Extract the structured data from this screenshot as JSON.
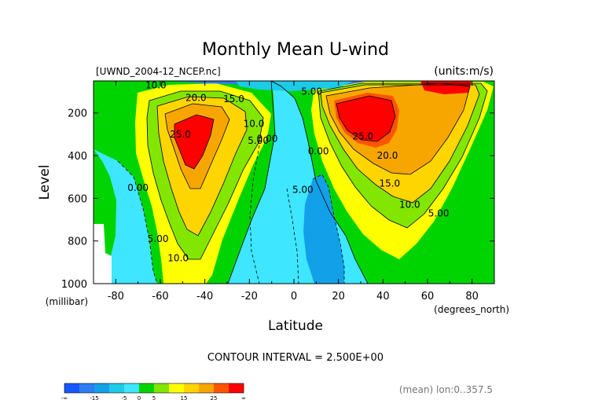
{
  "chart_data": {
    "type": "heatmap",
    "title": "Monthly Mean U-wind",
    "subtitle_left": "[UWND_2004-12_NCEP.nc]",
    "subtitle_right": "(units:m/s)",
    "xlabel": "Latitude",
    "x_unit_label": "(degrees_north)",
    "ylabel": "Level",
    "y_unit_label": "(millibar)",
    "xlim": [
      -90,
      90
    ],
    "ylim": [
      1000,
      50
    ],
    "x_ticks": [
      -80,
      -60,
      -40,
      -20,
      0,
      20,
      40,
      60,
      80
    ],
    "y_ticks": [
      1000,
      800,
      600,
      400,
      200
    ],
    "contour_interval_text": "CONTOUR INTERVAL = 2.500E+00",
    "footer_text": "(mean) lon:0..357.5",
    "contour_labels": [
      {
        "text": "10.0",
        "x": -62,
        "y": 70
      },
      {
        "text": "20.0",
        "x": -44,
        "y": 130
      },
      {
        "text": "15.0",
        "x": -27,
        "y": 135
      },
      {
        "text": "25.0",
        "x": -51,
        "y": 300
      },
      {
        "text": "10.0",
        "x": -18,
        "y": 250
      },
      {
        "text": "5.00",
        "x": -16,
        "y": 330
      },
      {
        "text": "0.00",
        "x": -12,
        "y": 320
      },
      {
        "text": "0.00",
        "x": -70,
        "y": 550
      },
      {
        "text": "5.00",
        "x": -61,
        "y": 790
      },
      {
        "text": "10.0",
        "x": -52,
        "y": 880
      },
      {
        "text": "5.00",
        "x": 8,
        "y": 100
      },
      {
        "text": "0.00",
        "x": 11,
        "y": 380
      },
      {
        "text": "5.00",
        "x": 4,
        "y": 560
      },
      {
        "text": "25.0",
        "x": 31,
        "y": 310
      },
      {
        "text": "20.0",
        "x": 42,
        "y": 400
      },
      {
        "text": "15.0",
        "x": 43,
        "y": 530
      },
      {
        "text": "10.0",
        "x": 52,
        "y": 630
      },
      {
        "text": "5.00",
        "x": 65,
        "y": 670
      }
    ],
    "colorbar": {
      "bins": [
        {
          "range": "< -20",
          "color": "#1457ff"
        },
        {
          "range": "-20..-15",
          "color": "#2f7df2"
        },
        {
          "range": "-15..-10",
          "color": "#12a0e8"
        },
        {
          "range": "-10..-5",
          "color": "#1ccbe8"
        },
        {
          "range": "-5..0",
          "color": "#3ee6ff"
        },
        {
          "range": "0..5",
          "color": "#00d400"
        },
        {
          "range": "5..10",
          "color": "#82e600"
        },
        {
          "range": "10..15",
          "color": "#ffff00"
        },
        {
          "range": "15..20",
          "color": "#ffd500"
        },
        {
          "range": "20..25",
          "color": "#f7a600"
        },
        {
          "range": "25..30",
          "color": "#ff5500"
        },
        {
          "range": "> 30",
          "color": "#ff0000"
        }
      ],
      "tick_labels": [
        "-∞",
        "-15",
        "-5",
        "0",
        "5",
        "15",
        "25",
        "∞"
      ]
    },
    "field_summary": {
      "south_jet": {
        "lat": -46,
        "level_mb": 250,
        "max": 27
      },
      "north_jet": {
        "lat": 30,
        "level_mb": 200,
        "max": 30
      },
      "equatorial_easterlies": {
        "lat": 10,
        "level_range_mb": [
          500,
          1000
        ],
        "min": -10
      }
    }
  }
}
